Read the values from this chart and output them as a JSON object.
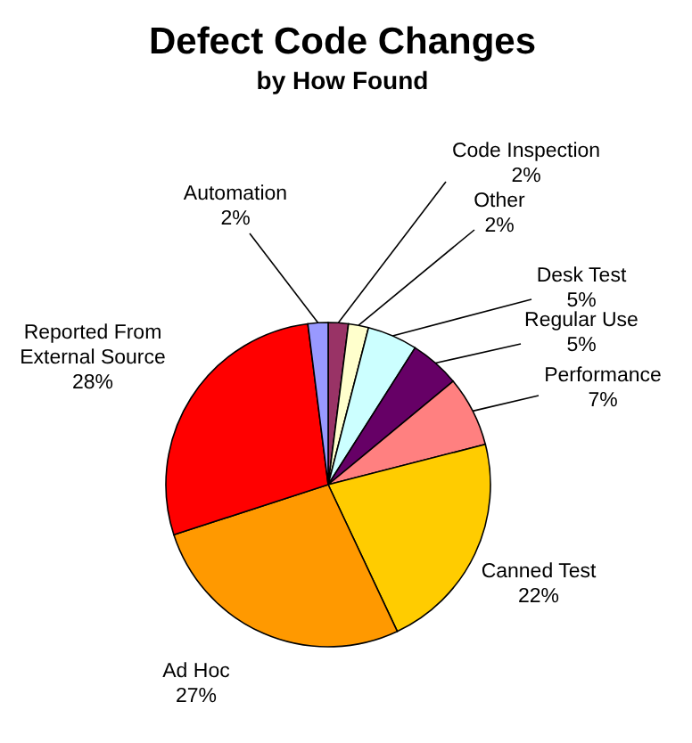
{
  "chart_data": {
    "type": "pie",
    "title": "Defect Code Changes",
    "subtitle": "by How Found",
    "categories": [
      "Code Inspection",
      "Other",
      "Desk Test",
      "Regular Use",
      "Performance",
      "Canned Test",
      "Ad Hoc",
      "Reported From External Source",
      "Automation"
    ],
    "values": [
      2,
      2,
      5,
      5,
      7,
      22,
      27,
      28,
      2
    ],
    "value_labels": [
      "2%",
      "2%",
      "5%",
      "5%",
      "7%",
      "22%",
      "27%",
      "28%",
      "2%"
    ],
    "colors": [
      "#993366",
      "#ffffcc",
      "#ccffff",
      "#660066",
      "#ff8080",
      "#ffcc00",
      "#ff9900",
      "#ff0000",
      "#9999ff"
    ],
    "legend": false
  }
}
